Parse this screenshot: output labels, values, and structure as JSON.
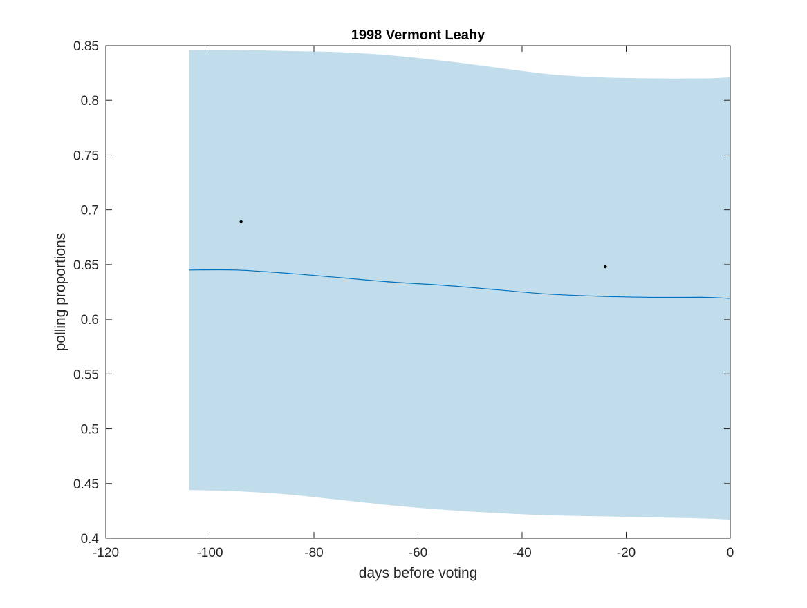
{
  "chart_data": {
    "type": "line",
    "title": "1998 Vermont Leahy",
    "xlabel": "days before voting",
    "ylabel": "polling proportions",
    "xlim": [
      -120,
      0
    ],
    "ylim": [
      0.4,
      0.85
    ],
    "grid": false,
    "x_ticks": [
      "-120",
      "-100",
      "-80",
      "-60",
      "-40",
      "-20",
      "0"
    ],
    "y_ticks": [
      "0.4",
      "0.45",
      "0.5",
      "0.55",
      "0.6",
      "0.65",
      "0.7",
      "0.75",
      "0.8",
      "0.85"
    ],
    "band": {
      "x": [
        -104,
        -95,
        -85,
        -75,
        -65,
        -55,
        -45,
        -35,
        -25,
        -15,
        -5,
        0
      ],
      "upper": [
        0.846,
        0.846,
        0.845,
        0.844,
        0.841,
        0.836,
        0.83,
        0.824,
        0.821,
        0.82,
        0.82,
        0.821
      ],
      "lower": [
        0.444,
        0.443,
        0.44,
        0.435,
        0.43,
        0.426,
        0.423,
        0.421,
        0.42,
        0.419,
        0.418,
        0.417
      ],
      "color": "#c1dceb"
    },
    "series": [
      {
        "x": [
          -104,
          -95,
          -85,
          -75,
          -65,
          -55,
          -45,
          -35,
          -25,
          -15,
          -5,
          0
        ],
        "values": [
          0.645,
          0.645,
          0.642,
          0.638,
          0.634,
          0.631,
          0.627,
          0.623,
          0.621,
          0.62,
          0.62,
          0.619
        ],
        "color": "#0072bd"
      }
    ],
    "points": {
      "x": [
        -94,
        -24
      ],
      "y": [
        0.689,
        0.648
      ],
      "color": "#000000"
    }
  }
}
